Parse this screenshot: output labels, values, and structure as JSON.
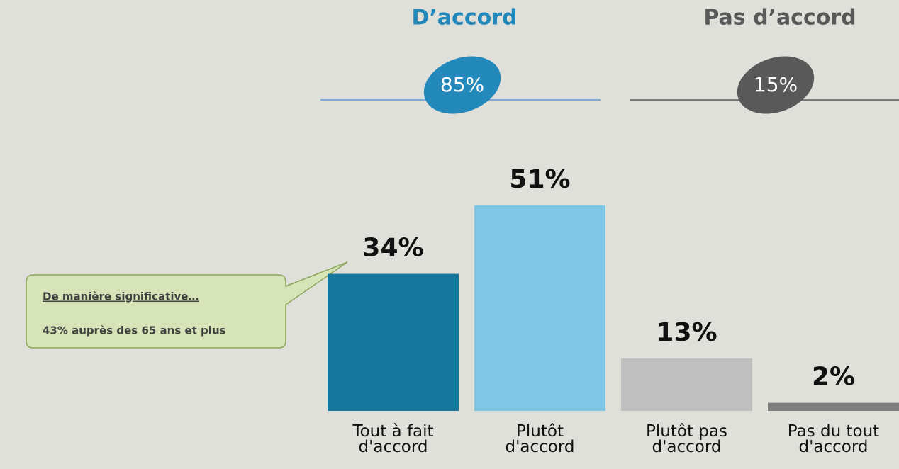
{
  "chart_data": {
    "type": "bar",
    "categories": [
      "Tout à fait d'accord",
      "Plutôt d'accord",
      "Plutôt pas d'accord",
      "Pas du tout d'accord"
    ],
    "values": [
      34,
      51,
      13,
      2
    ],
    "value_labels": [
      "34%",
      "51%",
      "13%",
      "2%"
    ],
    "colors": [
      "#16789e",
      "#7ec6e4",
      "#bfbfbf",
      "#7f7f7f"
    ],
    "groups": [
      {
        "name": "D’accord",
        "value": 85,
        "value_label": "85%",
        "color": "#2388ba"
      },
      {
        "name": "Pas d’accord",
        "value": 15,
        "value_label": "15%",
        "color": "#595959"
      }
    ],
    "annotation": {
      "title": "De manière significative…",
      "text": "43% auprès des 65 ans et plus"
    }
  }
}
